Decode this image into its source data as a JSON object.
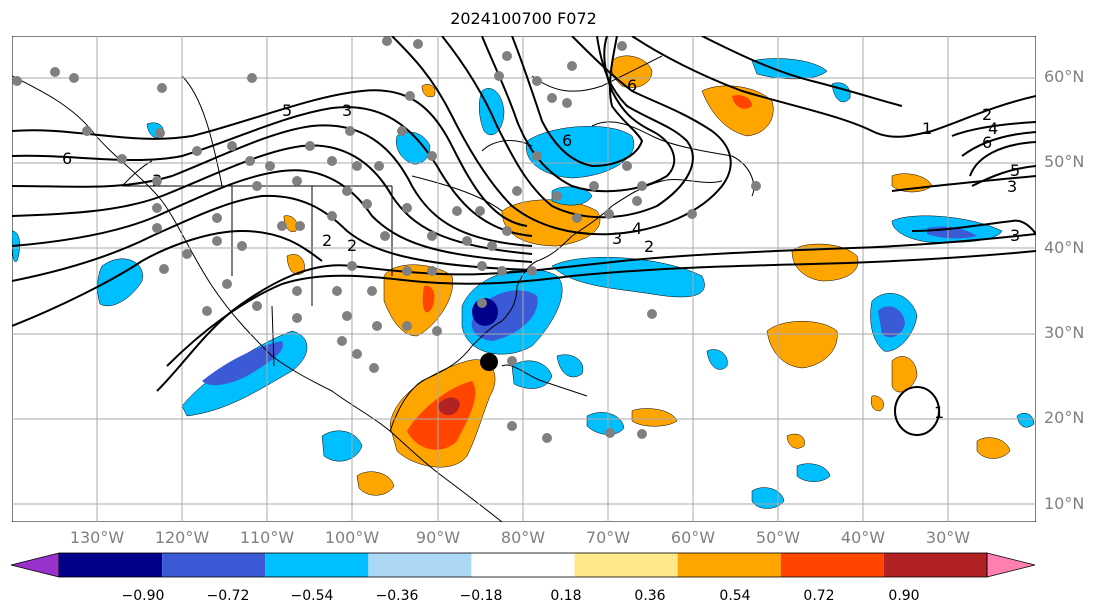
{
  "title": "2024100700 F072",
  "lat_labels": [
    "60°N",
    "50°N",
    "40°N",
    "30°N",
    "20°N",
    "10°N"
  ],
  "lon_labels": [
    "130°W",
    "120°W",
    "110°W",
    "100°W",
    "90°W",
    "80°W",
    "70°W",
    "60°W",
    "50°W",
    "40°W",
    "30°W"
  ],
  "contour_labels": [
    "5",
    "3",
    "6",
    "3",
    "2",
    "2",
    "6",
    "6",
    "4",
    "3",
    "2",
    "1",
    "2",
    "4",
    "6",
    "5",
    "3",
    "3",
    "1"
  ],
  "colorbar": {
    "ticks": [
      "−0.90",
      "−0.72",
      "−0.54",
      "−0.36",
      "−0.18",
      "0.18",
      "0.36",
      "0.54",
      "0.72",
      "0.90"
    ],
    "colors": [
      "#9932cc",
      "#00008b",
      "#3b5bd6",
      "#00bfff",
      "#add8f5",
      "#ffffff",
      "#ffe88a",
      "#ffa500",
      "#ff4500",
      "#b22222",
      "#ff80b0"
    ]
  },
  "palette": {
    "negative_strong": "#00008b",
    "negative_mid": "#3b5bd6",
    "negative_light": "#00bfff",
    "positive_light": "#ffa500",
    "positive_mid": "#ff4500",
    "positive_strong": "#b22222"
  }
}
